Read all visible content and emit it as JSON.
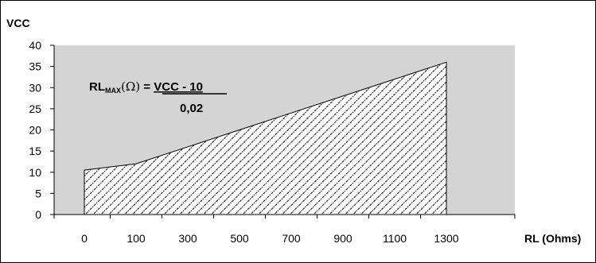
{
  "chart_data": {
    "type": "area",
    "ylabel": "VCC",
    "xlabel": "RL (Ohms)",
    "ylim": [
      0,
      40
    ],
    "y_ticks": [
      "0",
      "5",
      "10",
      "15",
      "20",
      "25",
      "30",
      "35",
      "40"
    ],
    "categories": [
      "0",
      "100",
      "300",
      "500",
      "700",
      "900",
      "1100",
      "1300"
    ],
    "series": [
      {
        "values": [
          10.5,
          12,
          16,
          20,
          24,
          28,
          32,
          36
        ]
      }
    ],
    "grid": false,
    "plot_background": "#d4d4d4",
    "fill_pattern": "diagonal-hatch",
    "annotation": {
      "main": "RL",
      "subscript": "MAX",
      "unit": "(Ω)",
      "equals": " = ",
      "numerator": "VCC - 10",
      "denominator": "0,02"
    }
  }
}
